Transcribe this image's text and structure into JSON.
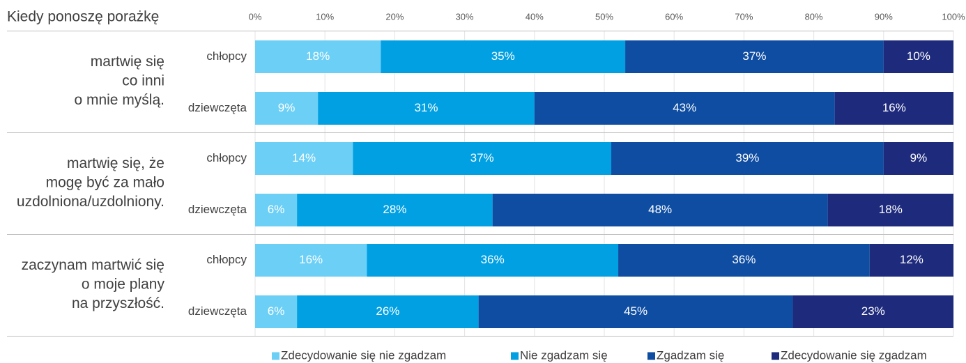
{
  "chart_data": {
    "type": "bar",
    "orientation": "horizontal",
    "stacking": "percent",
    "title": "Kiedy ponoszę porażkę",
    "xlim": [
      0,
      100
    ],
    "x_tick_labels": [
      "0%",
      "10%",
      "20%",
      "30%",
      "40%",
      "50%",
      "60%",
      "70%",
      "80%",
      "90%",
      "100%"
    ],
    "value_suffix": "%",
    "grid": true,
    "legend_position": "bottom",
    "groups": [
      {
        "label_lines": [
          "martwię się",
          "co inni",
          "o mnie myślą."
        ],
        "categories": [
          "chłopcy",
          "dziewczęta"
        ]
      },
      {
        "label_lines": [
          "martwię się, że",
          "mogę być za mało",
          "uzdolniona/uzdolniony."
        ],
        "categories": [
          "chłopcy",
          "dziewczęta"
        ]
      },
      {
        "label_lines": [
          "zaczynam martwić się",
          "o moje plany",
          "na przyszłość."
        ],
        "categories": [
          "chłopcy",
          "dziewczęta"
        ]
      }
    ],
    "series": [
      {
        "name": "Zdecydowanie się nie zgadzam",
        "color": "#6CCFF6",
        "values": [
          18,
          9,
          14,
          6,
          16,
          6
        ]
      },
      {
        "name": "Nie zgadzam się",
        "color": "#00A0E3",
        "values": [
          35,
          31,
          37,
          28,
          36,
          26
        ]
      },
      {
        "name": "Zgadzam się",
        "color": "#0F4DA2",
        "values": [
          37,
          43,
          39,
          48,
          36,
          45
        ]
      },
      {
        "name": "Zdecydowanie się zgadzam",
        "color": "#1E2B7C",
        "values": [
          10,
          16,
          9,
          18,
          12,
          23
        ]
      }
    ]
  }
}
